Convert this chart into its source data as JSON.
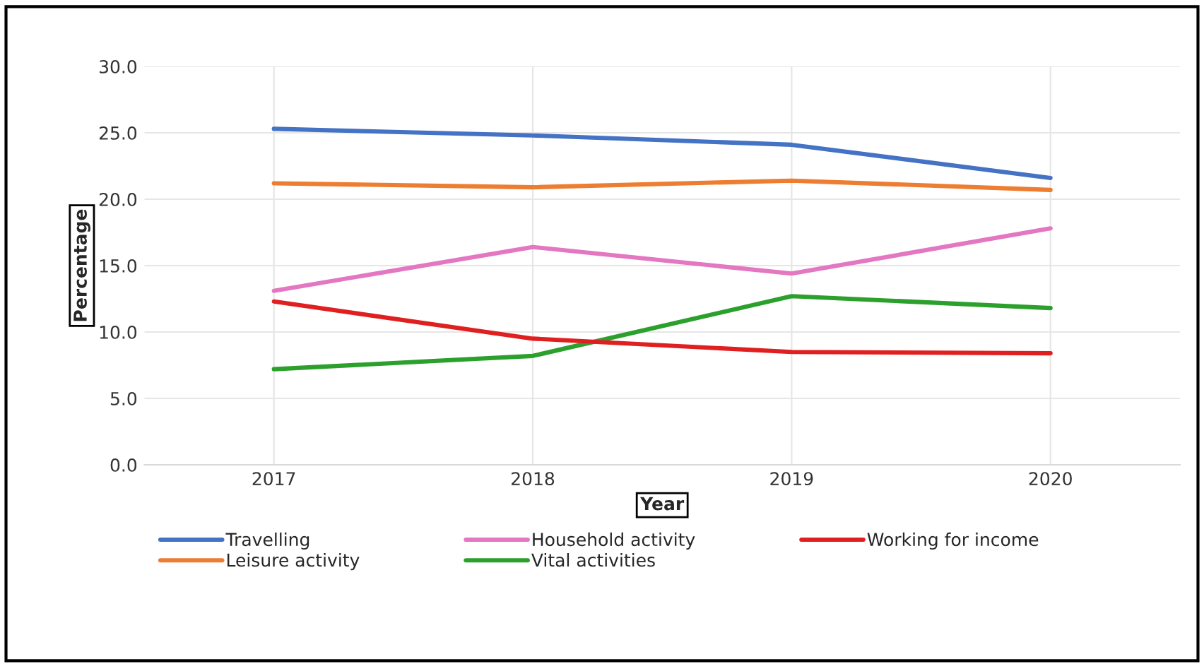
{
  "chart_data": {
    "type": "line",
    "xlabel": "Year",
    "ylabel": "Percentage",
    "categories": [
      "2017",
      "2018",
      "2019",
      "2020"
    ],
    "series": [
      {
        "name": "Travelling",
        "color": "#4472c4",
        "values": [
          25.3,
          24.8,
          24.1,
          21.6
        ]
      },
      {
        "name": "Leisure activity",
        "color": "#ed7d31",
        "values": [
          21.2,
          20.9,
          21.4,
          20.7
        ]
      },
      {
        "name": "Household activity",
        "color": "#e377c2",
        "values": [
          13.1,
          16.4,
          14.4,
          17.8
        ]
      },
      {
        "name": "Vital activities",
        "color": "#2ca02c",
        "values": [
          7.2,
          8.2,
          12.7,
          11.8
        ]
      },
      {
        "name": "Working for income",
        "color": "#e02020",
        "values": [
          12.3,
          9.5,
          8.5,
          8.4
        ]
      }
    ],
    "ylim": [
      0,
      30
    ],
    "yticks": [
      {
        "value": 0,
        "label": "0.0"
      },
      {
        "value": 5,
        "label": "5.0"
      },
      {
        "value": 10,
        "label": "10.0"
      },
      {
        "value": 15,
        "label": "15.0"
      },
      {
        "value": 20,
        "label": "20.0"
      },
      {
        "value": 25,
        "label": "25.0"
      },
      {
        "value": 30,
        "label": "30.0"
      }
    ],
    "grid": true,
    "legend": "bottom",
    "marker": "none",
    "line_style": "solid"
  }
}
